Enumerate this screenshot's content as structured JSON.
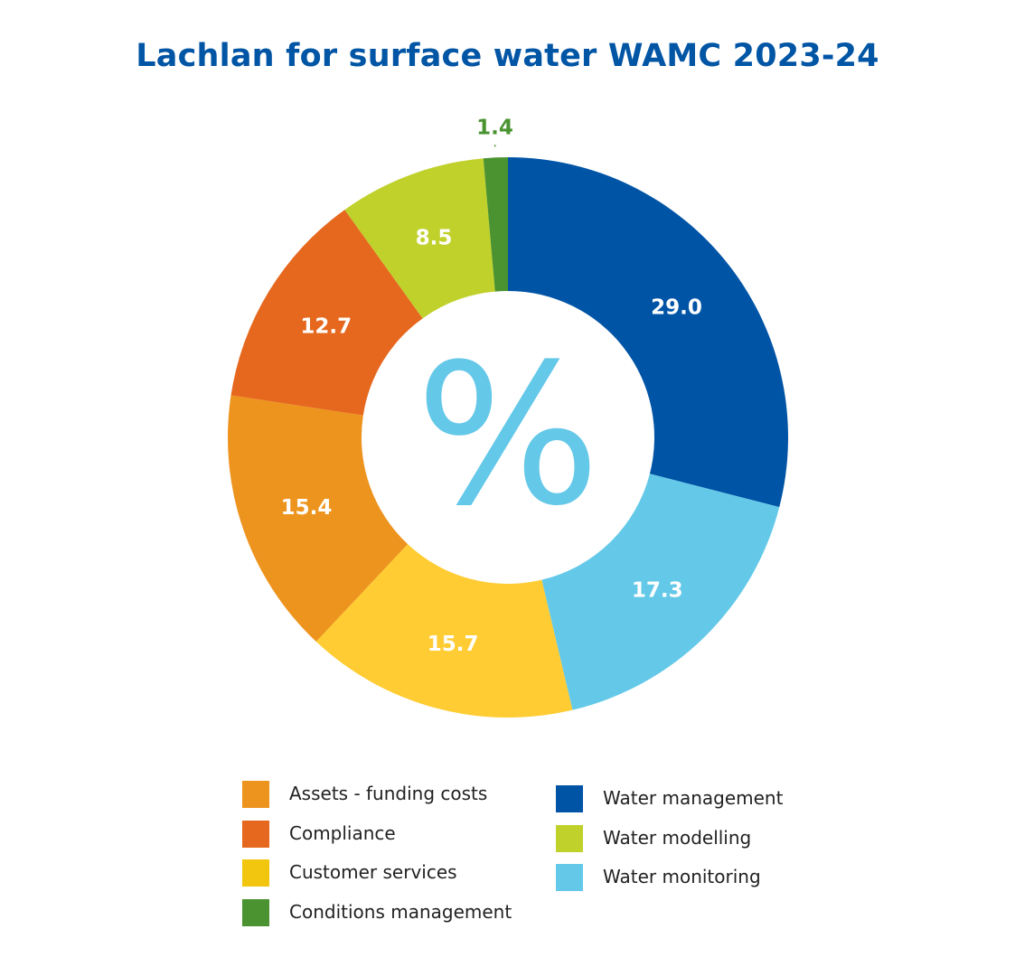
{
  "chart_data": {
    "type": "pie",
    "variant": "donut",
    "title": "Lachlan for surface water WAMC 2023-24",
    "center_symbol": "%",
    "title_color": "#0055a5",
    "center_symbol_color": "#64c8e8",
    "slices": [
      {
        "name": "Water management",
        "value": 29.0,
        "label": "29.0",
        "color": "#0054a6",
        "label_color": "#ffffff"
      },
      {
        "name": "Water monitoring",
        "value": 17.3,
        "label": "17.3",
        "color": "#64c9e8",
        "label_color": "#ffffff"
      },
      {
        "name": "Customer services",
        "value": 15.7,
        "label": "15.7",
        "color": "#ffcc33",
        "label_color": "#ffffff"
      },
      {
        "name": "Assets - funding costs",
        "value": 15.4,
        "label": "15.4",
        "color": "#ed941e",
        "label_color": "#ffffff"
      },
      {
        "name": "Compliance",
        "value": 12.7,
        "label": "12.7",
        "color": "#e6681e",
        "label_color": "#ffffff"
      },
      {
        "name": "Water modelling",
        "value": 8.5,
        "label": "8.5",
        "color": "#c0d12c",
        "label_color": "#ffffff"
      },
      {
        "name": "Conditions management",
        "value": 1.4,
        "label": "1.4",
        "color": "#4a9330",
        "label_color": "#4a9330",
        "label_outside": true
      }
    ],
    "legend": {
      "placement": "bottom",
      "columns": [
        [
          {
            "label": "Assets - funding costs",
            "color": "#ed941e"
          },
          {
            "label": "Compliance",
            "color": "#e6681e"
          },
          {
            "label": "Customer services",
            "color": "#f2c50e"
          },
          {
            "label": "Conditions management",
            "color": "#4a9330"
          }
        ],
        [
          {
            "label": "Water management",
            "color": "#0054a6"
          },
          {
            "label": "Water modelling",
            "color": "#c0d12c"
          },
          {
            "label": "Water monitoring",
            "color": "#64c9e8"
          }
        ]
      ]
    }
  }
}
